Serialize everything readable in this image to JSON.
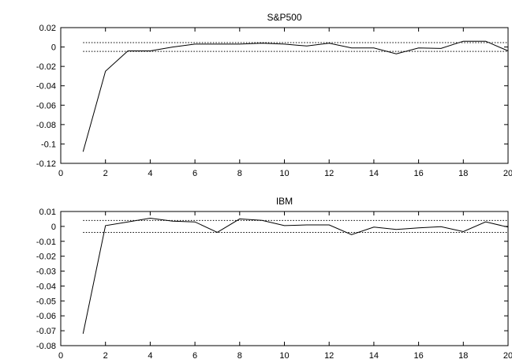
{
  "chart_data": [
    {
      "type": "line",
      "title": "S&P500",
      "xlabel": "",
      "ylabel": "",
      "xlim": [
        0,
        20
      ],
      "ylim": [
        -0.12,
        0.02
      ],
      "xticks": [
        0,
        2,
        4,
        6,
        8,
        10,
        12,
        14,
        16,
        18,
        20
      ],
      "xtick_labels": [
        "0",
        "2",
        "4",
        "6",
        "8",
        "10",
        "12",
        "14",
        "16",
        "18",
        "20"
      ],
      "yticks": [
        0.02,
        0,
        -0.02,
        -0.04,
        -0.06,
        -0.08,
        -0.1,
        -0.12
      ],
      "ytick_labels": [
        "0.02",
        "0",
        "-0.02",
        "-0.04",
        "-0.06",
        "-0.08",
        "-0.1",
        "-0.12"
      ],
      "grid": false,
      "x": [
        1,
        2,
        3,
        4,
        5,
        6,
        7,
        8,
        9,
        10,
        11,
        12,
        13,
        14,
        15,
        16,
        17,
        18,
        19,
        20
      ],
      "series": [
        {
          "values": [
            -0.108,
            -0.025,
            -0.004,
            -0.004,
            0.0,
            0.003,
            0.003,
            0.003,
            0.004,
            0.003,
            0.001,
            0.004,
            -0.001,
            -0.001,
            -0.007,
            -0.001,
            -0.0015,
            0.006,
            0.006,
            -0.004
          ]
        }
      ],
      "bands": [
        0.0045,
        -0.0045
      ]
    },
    {
      "type": "line",
      "title": "IBM",
      "xlabel": "",
      "ylabel": "",
      "xlim": [
        0,
        20
      ],
      "ylim": [
        -0.08,
        0.01
      ],
      "xticks": [
        0,
        2,
        4,
        6,
        8,
        10,
        12,
        14,
        16,
        18,
        20
      ],
      "xtick_labels": [
        "0",
        "2",
        "4",
        "6",
        "8",
        "10",
        "12",
        "14",
        "16",
        "18",
        "20"
      ],
      "yticks": [
        0.01,
        0,
        -0.01,
        -0.02,
        -0.03,
        -0.04,
        -0.05,
        -0.06,
        -0.07,
        -0.08
      ],
      "ytick_labels": [
        "0.01",
        "0",
        "-0.01",
        "-0.02",
        "-0.03",
        "-0.04",
        "-0.05",
        "-0.06",
        "-0.07",
        "-0.08"
      ],
      "grid": false,
      "x": [
        1,
        2,
        3,
        4,
        5,
        6,
        7,
        8,
        9,
        10,
        11,
        12,
        13,
        14,
        15,
        16,
        17,
        18,
        19,
        20
      ],
      "series": [
        {
          "values": [
            -0.072,
            0.0005,
            0.003,
            0.0055,
            0.0035,
            0.003,
            -0.004,
            0.005,
            0.004,
            0.0005,
            0.001,
            0.001,
            -0.0055,
            -0.0005,
            -0.002,
            -0.001,
            -0.0002,
            -0.0035,
            0.003,
            -0.0005
          ]
        }
      ],
      "bands": [
        0.004,
        -0.004
      ]
    }
  ]
}
